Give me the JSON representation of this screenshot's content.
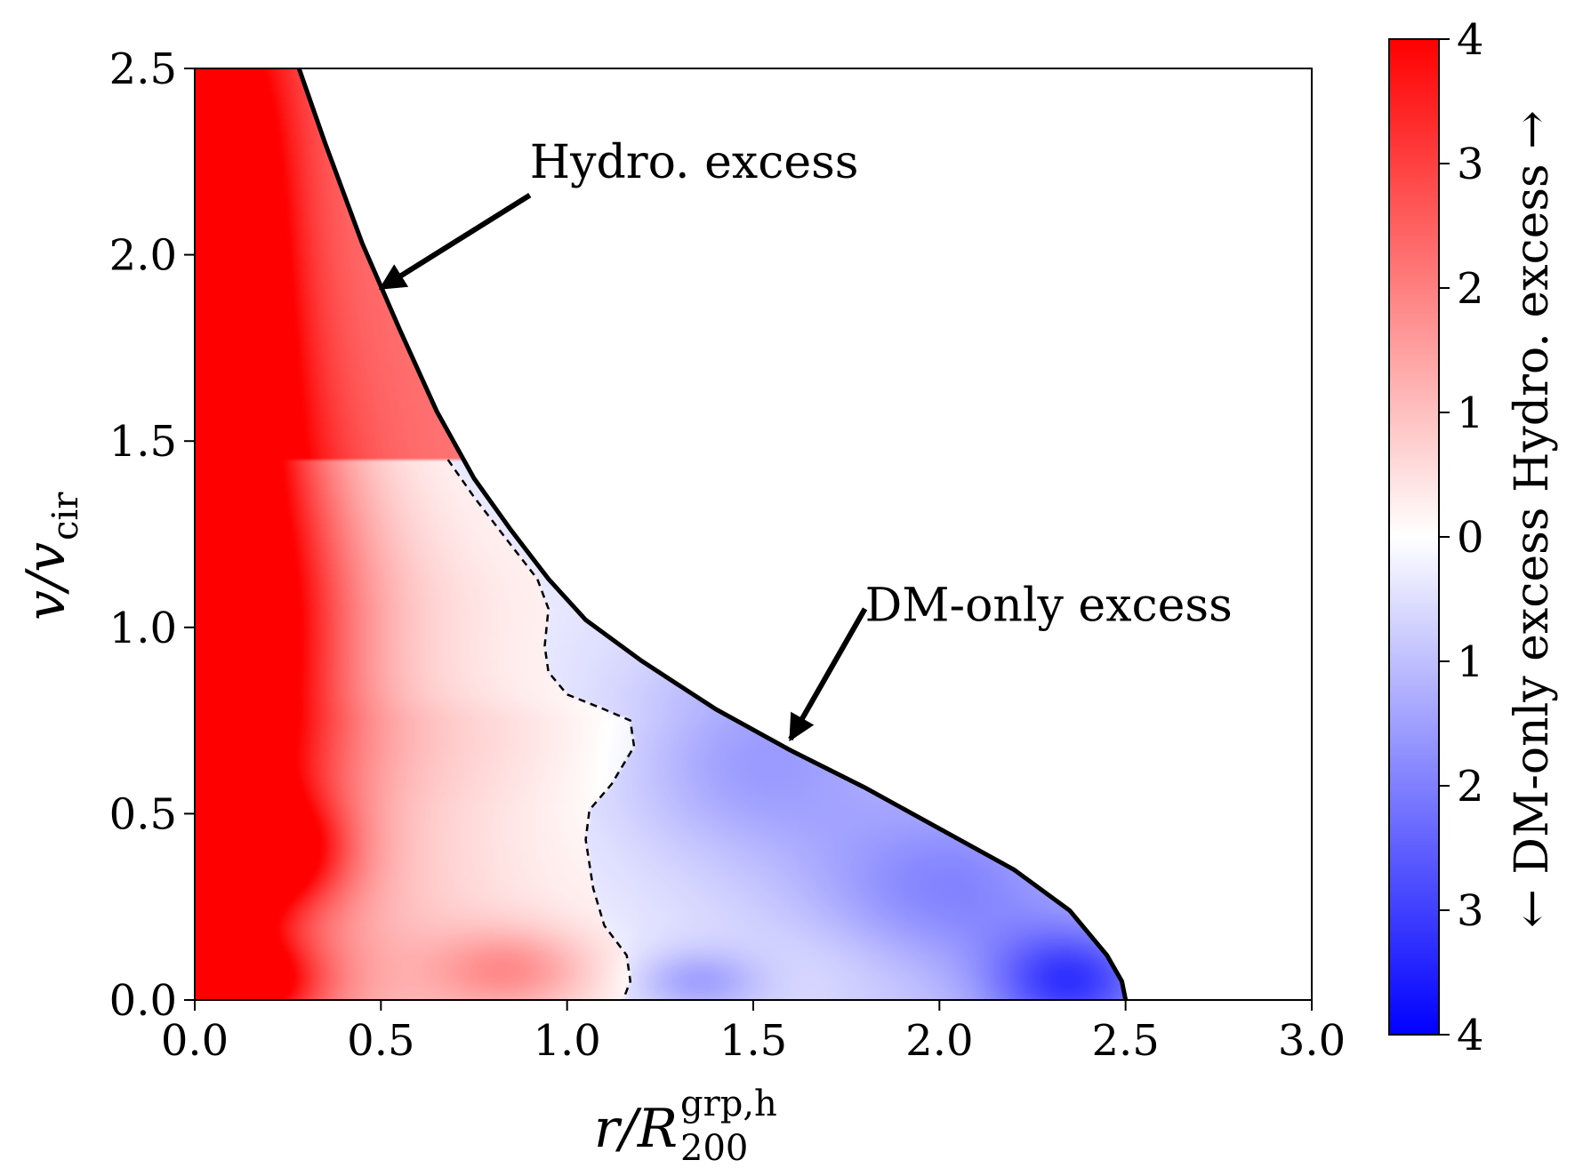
{
  "chart_data": {
    "type": "heatmap",
    "xlabel": {
      "main": "r/R",
      "sup": "grp,h",
      "sub": "200"
    },
    "ylabel": {
      "main": "v/v",
      "sub": "cir"
    },
    "xlim": [
      0.0,
      3.0
    ],
    "ylim": [
      0.0,
      2.5
    ],
    "x_ticks": [
      "0.0",
      "0.5",
      "1.0",
      "1.5",
      "2.0",
      "2.5",
      "3.0"
    ],
    "y_ticks": [
      "0.0",
      "0.5",
      "1.0",
      "1.5",
      "2.0",
      "2.5"
    ],
    "colorbar": {
      "label": "← DM-only excess Hydro. excess →",
      "range": [
        -4,
        4
      ],
      "ticks": [
        {
          "value": 4,
          "label": "4"
        },
        {
          "value": 3,
          "label": "3"
        },
        {
          "value": 2,
          "label": "2"
        },
        {
          "value": 1,
          "label": "1"
        },
        {
          "value": 0,
          "label": "0"
        },
        {
          "value": -1,
          "label": "1"
        },
        {
          "value": -2,
          "label": "2"
        },
        {
          "value": -3,
          "label": "3"
        },
        {
          "value": -4,
          "label": "4"
        }
      ],
      "colors": {
        "positive": "#ff0000",
        "zero": "#ffffff",
        "negative": "#0000ff"
      }
    },
    "escape_curve": {
      "description": "solid boundary",
      "points": [
        [
          0.28,
          2.5
        ],
        [
          0.35,
          2.3
        ],
        [
          0.45,
          2.03
        ],
        [
          0.55,
          1.8
        ],
        [
          0.65,
          1.58
        ],
        [
          0.75,
          1.4
        ],
        [
          0.85,
          1.26
        ],
        [
          0.95,
          1.13
        ],
        [
          1.05,
          1.02
        ],
        [
          1.2,
          0.91
        ],
        [
          1.4,
          0.78
        ],
        [
          1.6,
          0.67
        ],
        [
          1.8,
          0.57
        ],
        [
          2.0,
          0.46
        ],
        [
          2.2,
          0.35
        ],
        [
          2.35,
          0.24
        ],
        [
          2.45,
          0.12
        ],
        [
          2.49,
          0.05
        ],
        [
          2.5,
          0.0
        ]
      ]
    },
    "zero_contour": {
      "points": [
        [
          0.68,
          1.45
        ],
        [
          0.75,
          1.35
        ],
        [
          0.85,
          1.22
        ],
        [
          0.92,
          1.13
        ],
        [
          0.95,
          1.05
        ],
        [
          0.94,
          0.95
        ],
        [
          0.95,
          0.88
        ],
        [
          1.0,
          0.82
        ],
        [
          1.1,
          0.78
        ],
        [
          1.17,
          0.75
        ],
        [
          1.18,
          0.68
        ],
        [
          1.12,
          0.58
        ],
        [
          1.06,
          0.51
        ],
        [
          1.05,
          0.43
        ],
        [
          1.07,
          0.3
        ],
        [
          1.1,
          0.2
        ],
        [
          1.16,
          0.12
        ],
        [
          1.17,
          0.05
        ],
        [
          1.15,
          0.0
        ]
      ]
    },
    "field_blobs": [
      {
        "x": 0.1,
        "y": 0.95,
        "sx": 0.2,
        "sy": 0.45,
        "v": 3.8
      },
      {
        "x": 0.05,
        "y": 2.25,
        "sx": 0.14,
        "sy": 0.35,
        "v": 3.2
      },
      {
        "x": 0.05,
        "y": 1.7,
        "sx": 0.14,
        "sy": 0.3,
        "v": 3.0
      },
      {
        "x": 0.05,
        "y": 0.35,
        "sx": 0.12,
        "sy": 0.18,
        "v": 3.0
      },
      {
        "x": 0.25,
        "y": 0.4,
        "sx": 0.12,
        "sy": 0.1,
        "v": 2.0
      },
      {
        "x": 0.1,
        "y": 0.05,
        "sx": 0.15,
        "sy": 0.08,
        "v": 3.2
      },
      {
        "x": 0.85,
        "y": 0.08,
        "sx": 0.15,
        "sy": 0.08,
        "v": 1.3
      },
      {
        "x": 1.5,
        "y": 0.65,
        "sx": 0.25,
        "sy": 0.18,
        "v": -1.0
      },
      {
        "x": 2.0,
        "y": 0.3,
        "sx": 0.25,
        "sy": 0.15,
        "v": -1.0
      },
      {
        "x": 2.35,
        "y": 0.05,
        "sx": 0.15,
        "sy": 0.1,
        "v": -2.2
      },
      {
        "x": 1.35,
        "y": 0.05,
        "sx": 0.12,
        "sy": 0.06,
        "v": -1.0
      },
      {
        "x": 1.7,
        "y": 0.1,
        "sx": 0.15,
        "sy": 0.1,
        "v": 0.15
      }
    ],
    "annotations": [
      {
        "text": "Hydro. excess",
        "text_at": [
          0.9,
          2.25
        ],
        "arrow_tail": [
          0.9,
          2.16
        ],
        "arrow_head": [
          0.5,
          1.91
        ]
      },
      {
        "text": "DM-only excess",
        "text_at": [
          1.8,
          1.06
        ],
        "arrow_tail": [
          1.8,
          1.05
        ],
        "arrow_head": [
          1.6,
          0.7
        ]
      }
    ]
  }
}
